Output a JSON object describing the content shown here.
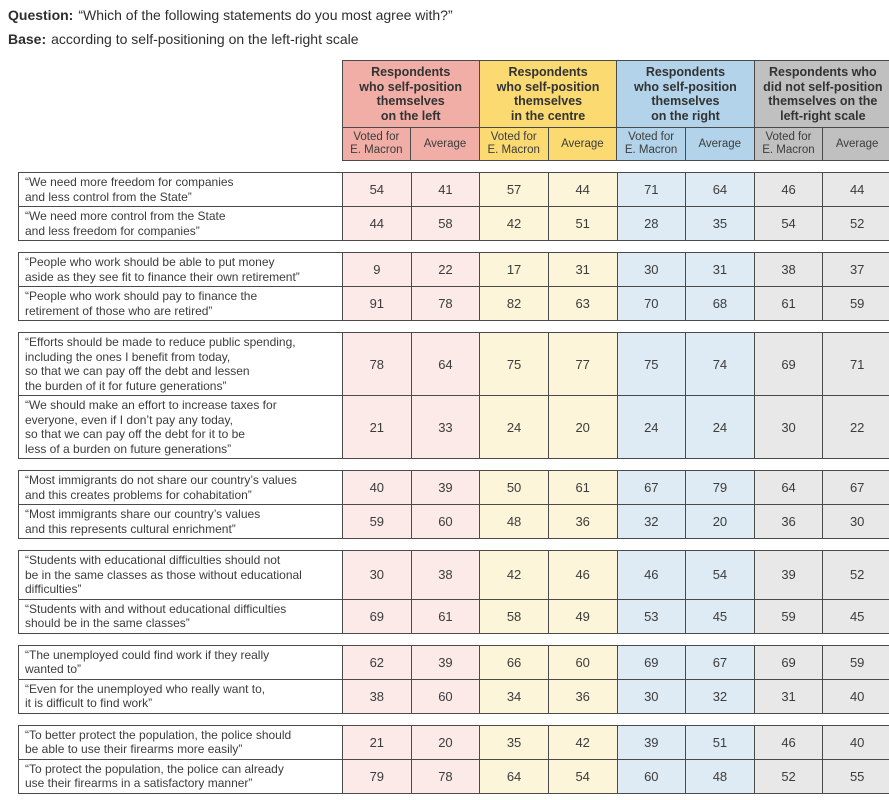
{
  "header": {
    "question_label": "Question:",
    "question_text": "“Which of the following statements do you most agree with?”",
    "base_label": "Base:",
    "base_text": "according to self-positioning on the left-right scale"
  },
  "colors": {
    "border": "#4a4a4a",
    "text": "#3c3c3c"
  },
  "chart_data": {
    "type": "table",
    "column_groups": [
      {
        "key": "left",
        "label": "Respondents\nwho self-position\nthemselves\non the left",
        "header_color": "#f1aea6",
        "cell_color": "#fbeae8"
      },
      {
        "key": "centre",
        "label": "Respondents\nwho self-position\nthemselves\nin the centre",
        "header_color": "#fbda71",
        "cell_color": "#fcf5d9"
      },
      {
        "key": "right",
        "label": "Respondents\nwho self-position\nthemselves\non the right",
        "header_color": "#b2d3e9",
        "cell_color": "#deebf4"
      },
      {
        "key": "no-position",
        "label": "Respondents who\ndid not self-position\nthemselves on the\nleft-right scale",
        "header_color": "#c0c0c0",
        "cell_color": "#e8e8e8"
      }
    ],
    "subcolumn_labels": [
      "Voted for\nE. Macron",
      "Average"
    ],
    "row_groups": [
      {
        "rows": [
          {
            "statement": "“We need more freedom for companies\nand less control from the State”",
            "values": [
              54,
              41,
              57,
              44,
              71,
              64,
              46,
              44
            ]
          },
          {
            "statement": "“We need more control from the State\nand less freedom for companies”",
            "values": [
              44,
              58,
              42,
              51,
              28,
              35,
              54,
              52
            ]
          }
        ]
      },
      {
        "rows": [
          {
            "statement": "“People who work should be able to put money\naside as they see fit to finance their own retirement”",
            "values": [
              9,
              22,
              17,
              31,
              30,
              31,
              38,
              37
            ]
          },
          {
            "statement": "“People who work should pay to finance the\nretirement of those who are retired”",
            "values": [
              91,
              78,
              82,
              63,
              70,
              68,
              61,
              59
            ]
          }
        ]
      },
      {
        "rows": [
          {
            "statement": "“Efforts should be made to reduce public spending,\nincluding the ones I benefit from today,\nso that we can pay off the debt and lessen\nthe burden of it for future generations”",
            "values": [
              78,
              64,
              75,
              77,
              75,
              74,
              69,
              71
            ]
          },
          {
            "statement": "“We should make an effort to increase taxes for\neveryone, even if I don’t pay any today,\nso that we can pay off the debt for it to be\nless of a burden on future generations”",
            "values": [
              21,
              33,
              24,
              20,
              24,
              24,
              30,
              22
            ]
          }
        ]
      },
      {
        "rows": [
          {
            "statement": "“Most immigrants do not share our country’s values\nand this creates problems for cohabitation”",
            "values": [
              40,
              39,
              50,
              61,
              67,
              79,
              64,
              67
            ]
          },
          {
            "statement": "“Most immigrants share our country’s values\nand this represents cultural enrichment”",
            "values": [
              59,
              60,
              48,
              36,
              32,
              20,
              36,
              30
            ]
          }
        ]
      },
      {
        "rows": [
          {
            "statement": "“Students with educational difficulties should not\nbe in the same classes as those without educational\ndifficulties”",
            "values": [
              30,
              38,
              42,
              46,
              46,
              54,
              39,
              52
            ]
          },
          {
            "statement": "“Students with and without educational difficulties\nshould be in the same classes”",
            "values": [
              69,
              61,
              58,
              49,
              53,
              45,
              59,
              45
            ]
          }
        ]
      },
      {
        "rows": [
          {
            "statement": "“The unemployed could find work if they really\nwanted to”",
            "values": [
              62,
              39,
              66,
              60,
              69,
              67,
              69,
              59
            ]
          },
          {
            "statement": "“Even for the unemployed who really want to,\nit is difficult to find work”",
            "values": [
              38,
              60,
              34,
              36,
              30,
              32,
              31,
              40
            ]
          }
        ]
      },
      {
        "rows": [
          {
            "statement": "“To better protect the population, the police should\nbe able to use their firearms more easily”",
            "values": [
              21,
              20,
              35,
              42,
              39,
              51,
              46,
              40
            ]
          },
          {
            "statement": "“To protect the population, the police can already\nuse their firearms in a satisfactory manner”",
            "values": [
              79,
              78,
              64,
              54,
              60,
              48,
              52,
              55
            ]
          }
        ]
      }
    ]
  }
}
